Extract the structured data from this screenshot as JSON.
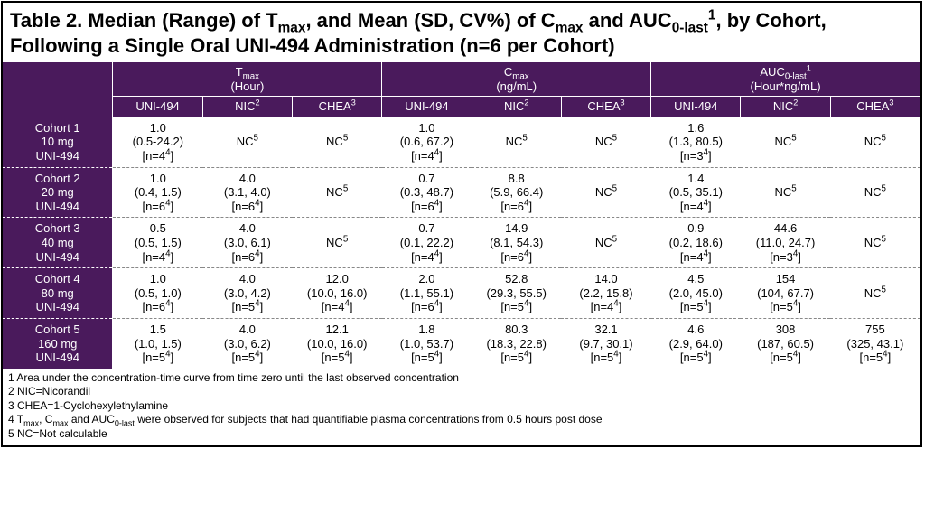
{
  "title_html": "Table 2. Median (Range) of T<sub>max</sub>, and Mean (SD, CV%) of C<sub>max</sub> and AUC<sub>0-last</sub><sup>1</sup>, by Cohort, Following a Single Oral UNI-494 Administration (n=6 per Cohort)",
  "groups": [
    {
      "label_html": "T<sub>max</sub><br>(Hour)"
    },
    {
      "label_html": "C<sub>max</sub><br>(ng/mL)"
    },
    {
      "label_html": "AUC<sub>0-last</sub><sup>1</sup><br>(Hour*ng/mL)"
    }
  ],
  "subcols": [
    "UNI-494",
    "NIC<sup>2</sup>",
    "CHEA<sup>3</sup>",
    "UNI-494",
    "NIC<sup>2</sup>",
    "CHEA<sup>3</sup>",
    "UNI-494",
    "NIC<sup>2</sup>",
    "CHEA<sup>3</sup>"
  ],
  "rows": [
    {
      "label_html": "Cohort 1<br>10 mg<br>UNI-494",
      "cells": [
        "1.0<br>(0.5-24.2)<br>[n=4<sup>4</sup>]",
        "NC<sup>5</sup>",
        "NC<sup>5</sup>",
        "1.0<br>(0.6, 67.2)<br>[n=4<sup>4</sup>]",
        "NC<sup>5</sup>",
        "NC<sup>5</sup>",
        "1.6<br>(1.3, 80.5)<br>[n=3<sup>4</sup>]",
        "NC<sup>5</sup>",
        "NC<sup>5</sup>"
      ]
    },
    {
      "label_html": "Cohort 2<br>20 mg<br>UNI-494",
      "cells": [
        "1.0<br>(0.4, 1.5)<br>[n=6<sup>4</sup>]",
        "4.0<br>(3.1, 4.0)<br>[n=6<sup>4</sup>]",
        "NC<sup>5</sup>",
        "0.7<br>(0.3, 48.7)<br>[n=6<sup>4</sup>]",
        "8.8<br>(5.9, 66.4)<br>[n=6<sup>4</sup>]",
        "NC<sup>5</sup>",
        "1.4<br>(0.5, 35.1)<br>[n=4<sup>4</sup>]",
        "NC<sup>5</sup>",
        "NC<sup>5</sup>"
      ]
    },
    {
      "label_html": "Cohort 3<br>40 mg<br>UNI-494",
      "cells": [
        "0.5<br>(0.5, 1.5)<br>[n=4<sup>4</sup>]",
        "4.0<br>(3.0, 6.1)<br>[n=6<sup>4</sup>]",
        "NC<sup>5</sup>",
        "0.7<br>(0.1, 22.2)<br>[n=4<sup>4</sup>]",
        "14.9<br>(8.1, 54.3)<br>[n=6<sup>4</sup>]",
        "NC<sup>5</sup>",
        "0.9<br>(0.2, 18.6)<br>[n=4<sup>4</sup>]",
        "44.6<br>(11.0, 24.7)<br>[n=3<sup>4</sup>]",
        "NC<sup>5</sup>"
      ]
    },
    {
      "label_html": "Cohort 4<br>80 mg<br>UNI-494",
      "cells": [
        "1.0<br>(0.5, 1.0)<br>[n=6<sup>4</sup>]",
        "4.0<br>(3.0, 4.2)<br>[n=5<sup>4</sup>]",
        "12.0<br>(10.0, 16.0)<br>[n=4<sup>4</sup>]",
        "2.0<br>(1.1, 55.1)<br>[n=6<sup>4</sup>]",
        "52.8<br>(29.3, 55.5)<br>[n=5<sup>4</sup>]",
        "14.0<br>(2.2, 15.8)<br>[n=4<sup>4</sup>]",
        "4.5<br>(2.0, 45.0)<br>[n=5<sup>4</sup>]",
        "154<br>(104, 67.7)<br>[n=5<sup>4</sup>]",
        "NC<sup>5</sup>"
      ]
    },
    {
      "label_html": "Cohort 5<br>160 mg<br>UNI-494",
      "cells": [
        "1.5<br>(1.0, 1.5)<br>[n=5<sup>4</sup>]",
        "4.0<br>(3.0, 6.2)<br>[n=5<sup>4</sup>]",
        "12.1<br>(10.0, 16.0)<br>[n=5<sup>4</sup>]",
        "1.8<br>(1.0, 53.7)<br>[n=5<sup>4</sup>]",
        "80.3<br>(18.3, 22.8)<br>[n=5<sup>4</sup>]",
        "32.1<br>(9.7, 30.1)<br>[n=5<sup>4</sup>]",
        "4.6<br>(2.9, 64.0)<br>[n=5<sup>4</sup>]",
        "308<br>(187, 60.5)<br>[n=5<sup>4</sup>]",
        "755<br>(325, 43.1)<br>[n=5<sup>4</sup>]"
      ]
    }
  ],
  "footnotes": [
    "1 Area under the concentration-time curve from time zero until the last observed concentration",
    "2 NIC=Nicorandil",
    "3 CHEA=1-Cyclohexylethylamine",
    "4 T<sub>max</sub>, C<sub>max</sub> and AUC<sub>0-last</sub> were observed for subjects that had quantifiable plasma concentrations from 0.5 hours post dose",
    "5 NC=Not calculable"
  ],
  "colors": {
    "header_bg": "#4a1a5c",
    "border": "#000000",
    "dash": "#888888"
  },
  "layout": {
    "rowlabel_width_pct": 12,
    "cell_width_pct": 9.77
  }
}
